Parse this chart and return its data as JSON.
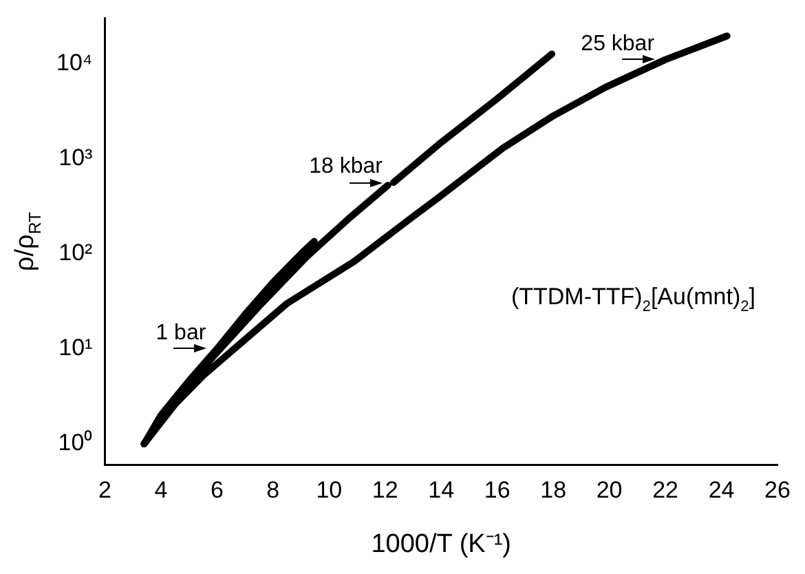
{
  "chart_data": {
    "type": "line",
    "xlabel": "1000/T (K⁻¹)",
    "ylabel": "ρ/ρ$_{RT}$",
    "log": "y",
    "xlim": [
      2,
      26
    ],
    "xticks": [
      2,
      4,
      6,
      8,
      10,
      12,
      14,
      16,
      18,
      20,
      22,
      24,
      26
    ],
    "ylim": [
      0.6,
      30000
    ],
    "yticks": [
      {
        "value": 1,
        "label": "10⁰"
      },
      {
        "value": 10,
        "label": "10¹"
      },
      {
        "value": 100,
        "label": "10²"
      },
      {
        "value": 1000,
        "label": "10³"
      },
      {
        "value": 10000,
        "label": "10⁴"
      }
    ],
    "grid": false,
    "legend": false,
    "marker": "none",
    "line_style": "solid",
    "series": [
      {
        "name": "1 bar",
        "color": "#000000",
        "x": [
          3.4,
          4,
          5,
          6,
          7,
          8,
          9,
          9.47
        ],
        "values": [
          1,
          2,
          4.6,
          10,
          23,
          50,
          100,
          135
        ]
      },
      {
        "name": "18 kbar",
        "color": "#000000",
        "x": [
          3.4,
          4.5,
          5.9,
          7.5,
          9.2,
          10.7,
          12.1,
          12.2,
          12.3,
          14,
          16,
          17.95
        ],
        "values": [
          1,
          2.8,
          8.5,
          28,
          93,
          234,
          525,
          null,
          562,
          1480,
          4270,
          12600
        ]
      },
      {
        "name": "25 kbar",
        "color": "#000000",
        "x": [
          3.4,
          4.5,
          5.5,
          6.7,
          8.5,
          10.9,
          12.9,
          13.9,
          16.2,
          18,
          19.86,
          22,
          24.2
        ],
        "values": [
          1,
          2.6,
          5.2,
          10.5,
          30,
          83,
          234,
          389,
          1290,
          2820,
          5620,
          11000,
          19500
        ]
      }
    ],
    "annotations": [
      "(TTDM-TTF)$_{2}$[Au(mnt)$_{2}$]"
    ]
  }
}
